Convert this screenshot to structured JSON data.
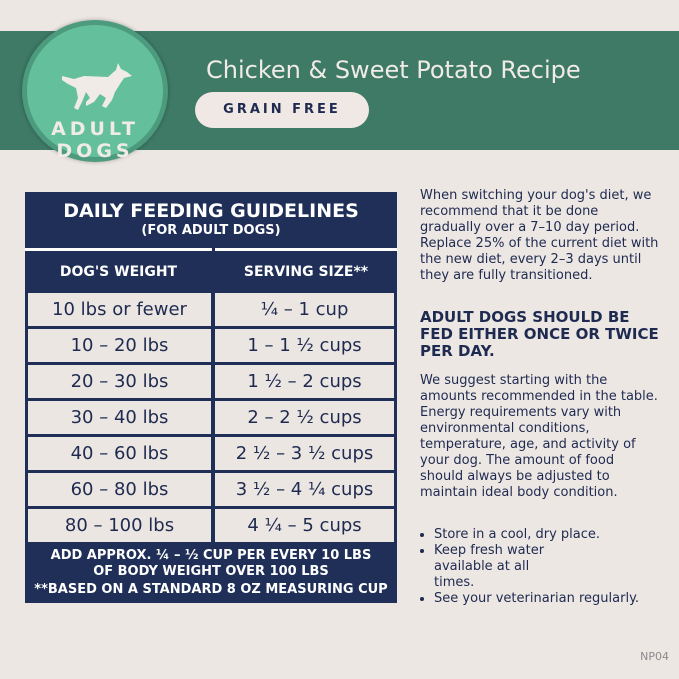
{
  "header": {
    "badge": "ADULT DOGS",
    "badge_line1": "ADULT",
    "badge_line2": "DOGS",
    "title": "Chicken & Sweet Potato Recipe",
    "tag": "GRAIN FREE",
    "colors": {
      "band": "#3e7a66",
      "badge": "#64bf9c",
      "navy": "#1f2f57"
    }
  },
  "table": {
    "title": "DAILY FEEDING GUIDELINES",
    "subtitle": "(FOR ADULT DOGS)",
    "columns": [
      "DOG'S WEIGHT",
      "SERVING SIZE**"
    ],
    "rows": [
      [
        "10 lbs or fewer",
        "¼ – 1 cup"
      ],
      [
        "10 – 20 lbs",
        "1 – 1 ½ cups"
      ],
      [
        "20 – 30 lbs",
        "1 ½ – 2 cups"
      ],
      [
        "30 – 40 lbs",
        "2 – 2 ½ cups"
      ],
      [
        "40 – 60 lbs",
        "2 ½ – 3 ½ cups"
      ],
      [
        "60 – 80 lbs",
        "3 ½ – 4 ¼ cups"
      ],
      [
        "80 – 100 lbs",
        "4 ¼ – 5 cups"
      ]
    ],
    "footnote1": "ADD APPROX. ¼ – ½ CUP PER EVERY 10 LBS",
    "footnote2": "OF BODY WEIGHT OVER 100 LBS",
    "footnote3": "**BASED ON A STANDARD 8 OZ MEASURING CUP"
  },
  "side": {
    "intro": "When switching your dog's diet, we recommend that it be done gradually over a 7–10 day period. Replace 25% of the current diet with the new diet, every 2–3 days until they are fully transitioned.",
    "heading": "ADULT DOGS SHOULD BE FED EITHER ONCE OR TWICE PER DAY.",
    "body": "We suggest starting with the amounts recommended in the table. Energy requirements vary with environmental conditions, temperature, age, and activity of your dog. The amount of food should always be adjusted to maintain ideal body condition.",
    "bullets": [
      "Store in a cool, dry place.",
      "Keep fresh water available at all times.",
      "See your veterinarian regularly."
    ]
  },
  "code": "NP04"
}
